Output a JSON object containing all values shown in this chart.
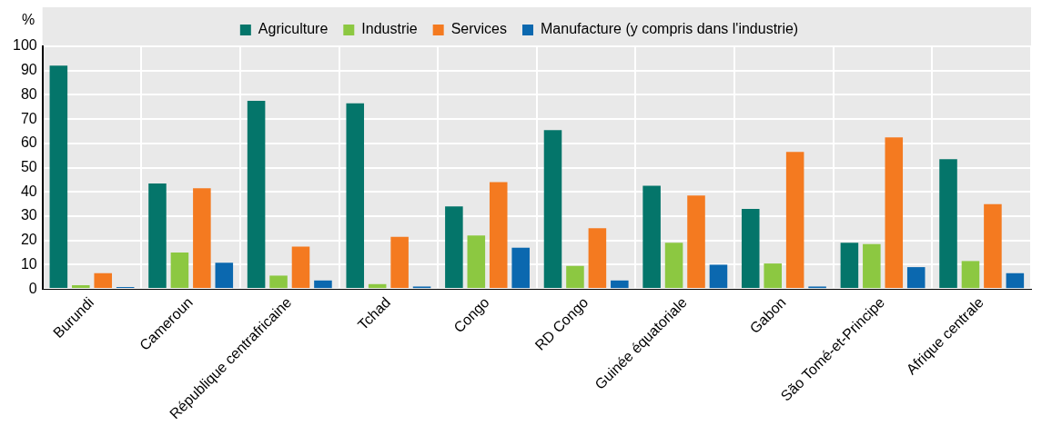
{
  "chart_data": {
    "type": "bar",
    "ylabel": "%",
    "categories": [
      "Burundi",
      "Cameroun",
      "République centrafricaine",
      "Tchad",
      "Congo",
      "RD Congo",
      "Guinée équatoriale",
      "Gabon",
      "São Tomé-et-Principe",
      "Afrique centrale"
    ],
    "series": [
      {
        "name": "Agriculture",
        "color": "#04756a",
        "values": [
          92,
          43.5,
          77.5,
          76.5,
          34,
          65.5,
          42.5,
          33,
          19,
          53.5
        ]
      },
      {
        "name": "Industrie",
        "color": "#8cc841",
        "values": [
          1.5,
          15,
          5.5,
          2,
          22,
          9.5,
          19,
          10.5,
          18.5,
          11.5
        ]
      },
      {
        "name": "Services",
        "color": "#f47a20",
        "values": [
          6.5,
          41.5,
          17.5,
          21.5,
          44,
          25,
          38.5,
          56.5,
          62.5,
          35
        ]
      },
      {
        "name": "Manufacture (y compris dans l'industrie)",
        "color": "#0b68af",
        "values": [
          0.8,
          10.8,
          3.5,
          1,
          17,
          3.5,
          10,
          1,
          9,
          6.5
        ]
      }
    ],
    "ylim": [
      0,
      100
    ],
    "yticks": [
      0,
      10,
      20,
      30,
      40,
      50,
      60,
      70,
      80,
      90,
      100
    ],
    "grid": true,
    "legend": "top"
  }
}
